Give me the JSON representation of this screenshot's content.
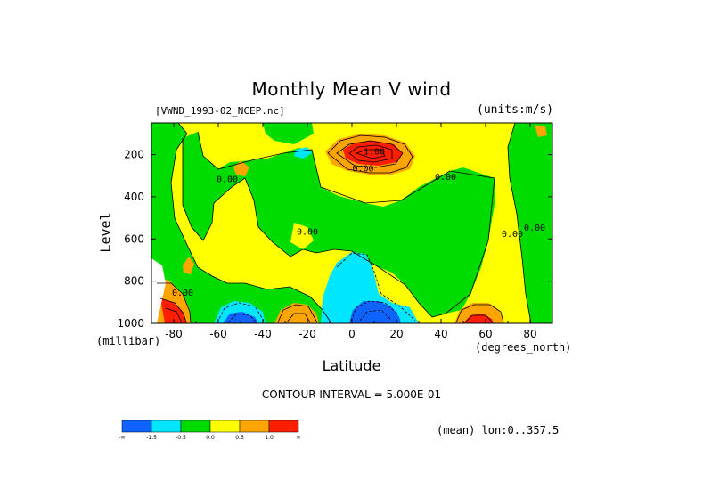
{
  "title": "Monthly Mean V wind",
  "dataset_label": "[VWND_1993-02_NCEP.nc]",
  "units_label": "(units:m/s)",
  "y_axis_label": "Level",
  "y_axis_units": "(millibar)",
  "x_axis_label": "Latitude",
  "x_axis_units": "(degrees_north)",
  "contour_interval": "CONTOUR INTERVAL = 5.000E-01",
  "mean_note": "(mean) lon:0..357.5",
  "colors": {
    "neg_2": "#0f64ff",
    "neg_1": "#00e6ff",
    "neg_0": "#00dc00",
    "pos_0": "#ffff00",
    "pos_1": "#ffa500",
    "pos_2": "#ff1e00"
  },
  "chart_data": {
    "type": "heatmap",
    "title": "Monthly Mean V wind",
    "xlabel": "Latitude",
    "ylabel": "Level",
    "xlim": [
      -90,
      90
    ],
    "ylim": [
      1000,
      50
    ],
    "x_ticks": [
      "-80",
      "-60",
      "-40",
      "-20",
      "0",
      "20",
      "40",
      "60",
      "80"
    ],
    "x_tick_values": [
      -80,
      -60,
      -40,
      -20,
      0,
      20,
      40,
      60,
      80
    ],
    "y_ticks": [
      "200",
      "400",
      "600",
      "800",
      "1000"
    ],
    "y_tick_values": [
      200,
      400,
      600,
      800,
      1000
    ],
    "contour_labels": [
      {
        "text": "0.00",
        "lat": -56,
        "lev": 330
      },
      {
        "text": "0.00",
        "lat": -20,
        "lev": 580
      },
      {
        "text": "0.00",
        "lat": 5,
        "lev": 280
      },
      {
        "text": "0.00",
        "lat": 42,
        "lev": 320
      },
      {
        "text": "0.00",
        "lat": 72,
        "lev": 590
      },
      {
        "text": "0.00",
        "lat": 82,
        "lev": 560
      },
      {
        "text": "0.00",
        "lat": -76,
        "lev": 870
      },
      {
        "text": "1.00",
        "lat": 10,
        "lev": 200
      }
    ],
    "colorbar": {
      "labels": [
        "-∞",
        "-1.5",
        "-0.5",
        "0.0",
        "0.5",
        "1.0",
        "∞"
      ],
      "bins": [
        "< -1.5",
        "-1.5 to -0.5",
        "-0.5 to 0.0",
        "0.0 to 0.5",
        "0.5 to 1.0",
        "> 1.0"
      ]
    },
    "features": [
      {
        "name": "northward jet maximum",
        "lat_range": [
          -10,
          30
        ],
        "lev_range": [
          110,
          260
        ],
        "value_gt": 1.5
      },
      {
        "name": "southward flow core",
        "lat_range": [
          -5,
          25
        ],
        "lev_range": [
          840,
          1000
        ],
        "value_lt": -1.5
      },
      {
        "name": "southward flow core",
        "lat_range": [
          -65,
          -45
        ],
        "lev_range": [
          930,
          1000
        ],
        "value_lt": -1.5
      }
    ]
  }
}
